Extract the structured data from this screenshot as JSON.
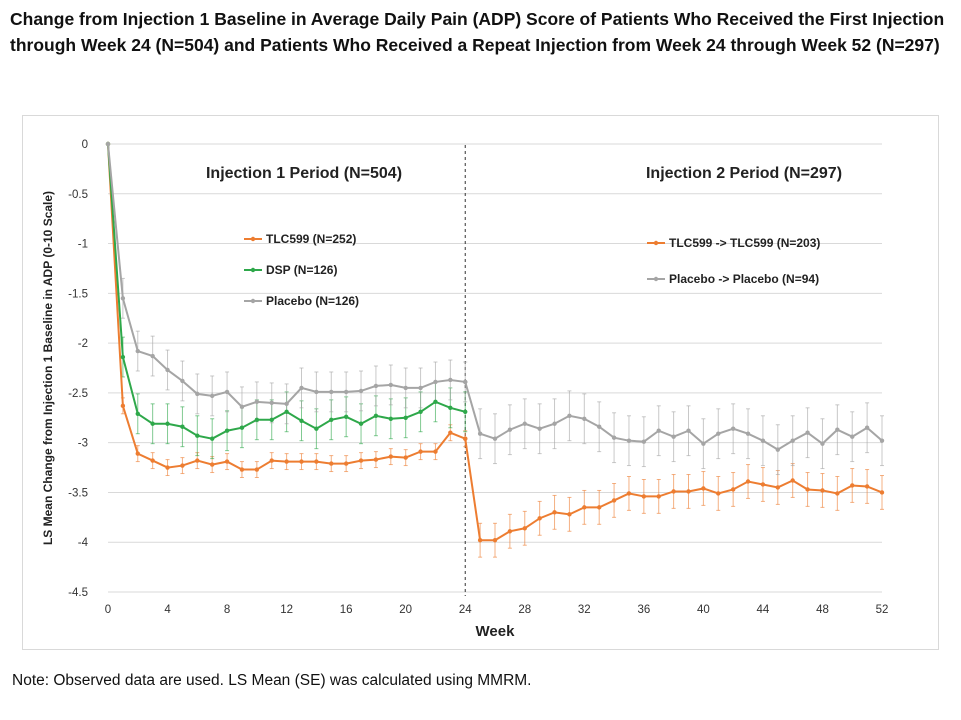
{
  "title": "Change from Injection 1 Baseline in Average Daily Pain (ADP) Score of Patients Who Received the First Injection through Week 24 (N=504) and Patients Who Received a Repeat Injection from Week 24 through Week 52 (N=297)",
  "note": "Note: Observed data are used. LS Mean (SE) was calculated using MMRM.",
  "chart_data": {
    "type": "line",
    "xlabel": "Week",
    "ylabel": "LS Mean Change from Injection 1 Baseline in ADP (0-10 Scale)",
    "xlim": [
      0,
      52
    ],
    "ylim": [
      -4.5,
      0
    ],
    "xticks": [
      0,
      4,
      8,
      12,
      16,
      20,
      24,
      28,
      32,
      36,
      40,
      44,
      48,
      52
    ],
    "yticks": [
      0,
      -0.5,
      -1,
      -1.5,
      -2,
      -2.5,
      -3,
      -3.5,
      -4,
      -4.5
    ],
    "grid": "horizontal",
    "divider_week": 24,
    "annotations": [
      "Injection 1 Period (N=504)",
      "Injection 2 Period (N=297)"
    ],
    "legend_placement": "inside, upper middle of each period",
    "series": [
      {
        "name": "TLC599 (N=252)",
        "color": "#ED7D31",
        "period": 1,
        "x_start": 0,
        "se": 0.08,
        "values": [
          0,
          -2.63,
          -3.11,
          -3.18,
          -3.25,
          -3.23,
          -3.18,
          -3.22,
          -3.19,
          -3.27,
          -3.27,
          -3.18,
          -3.19,
          -3.19,
          -3.19,
          -3.21,
          -3.21,
          -3.18,
          -3.17,
          -3.14,
          -3.15,
          -3.09,
          -3.09,
          -2.9,
          -2.96
        ]
      },
      {
        "name": "DSP (N=126)",
        "color": "#2EA84A",
        "period": 1,
        "x_start": 0,
        "se": 0.2,
        "values": [
          0,
          -2.14,
          -2.71,
          -2.81,
          -2.81,
          -2.84,
          -2.93,
          -2.96,
          -2.88,
          -2.85,
          -2.77,
          -2.77,
          -2.69,
          -2.78,
          -2.86,
          -2.77,
          -2.74,
          -2.81,
          -2.73,
          -2.76,
          -2.75,
          -2.69,
          -2.59,
          -2.65,
          -2.69
        ]
      },
      {
        "name": "Placebo (N=126)",
        "color": "#A5A5A5",
        "period": 1,
        "x_start": 0,
        "se": 0.2,
        "values": [
          0,
          -1.55,
          -2.08,
          -2.13,
          -2.27,
          -2.38,
          -2.51,
          -2.53,
          -2.49,
          -2.64,
          -2.59,
          -2.6,
          -2.61,
          -2.45,
          -2.49,
          -2.49,
          -2.49,
          -2.48,
          -2.43,
          -2.42,
          -2.45,
          -2.45,
          -2.39,
          -2.37,
          -2.39
        ]
      },
      {
        "name": "TLC599 -> TLC599 (N=203)",
        "color": "#ED7D31",
        "period": 2,
        "x_start": 24,
        "se": 0.17,
        "values": [
          -2.96,
          -3.98,
          -3.98,
          -3.89,
          -3.86,
          -3.76,
          -3.7,
          -3.72,
          -3.65,
          -3.65,
          -3.58,
          -3.51,
          -3.54,
          -3.54,
          -3.49,
          -3.49,
          -3.46,
          -3.51,
          -3.47,
          -3.39,
          -3.42,
          -3.45,
          -3.38,
          -3.47,
          -3.48,
          -3.51,
          -3.43,
          -3.44,
          -3.5
        ]
      },
      {
        "name": "Placebo -> Placebo (N=94)",
        "color": "#A5A5A5",
        "period": 2,
        "x_start": 24,
        "se": 0.25,
        "values": [
          -2.39,
          -2.91,
          -2.96,
          -2.87,
          -2.81,
          -2.86,
          -2.81,
          -2.73,
          -2.76,
          -2.84,
          -2.95,
          -2.98,
          -2.99,
          -2.88,
          -2.94,
          -2.88,
          -3.01,
          -2.91,
          -2.86,
          -2.91,
          -2.98,
          -3.07,
          -2.98,
          -2.9,
          -3.01,
          -2.87,
          -2.94,
          -2.85,
          -2.98
        ]
      }
    ]
  }
}
